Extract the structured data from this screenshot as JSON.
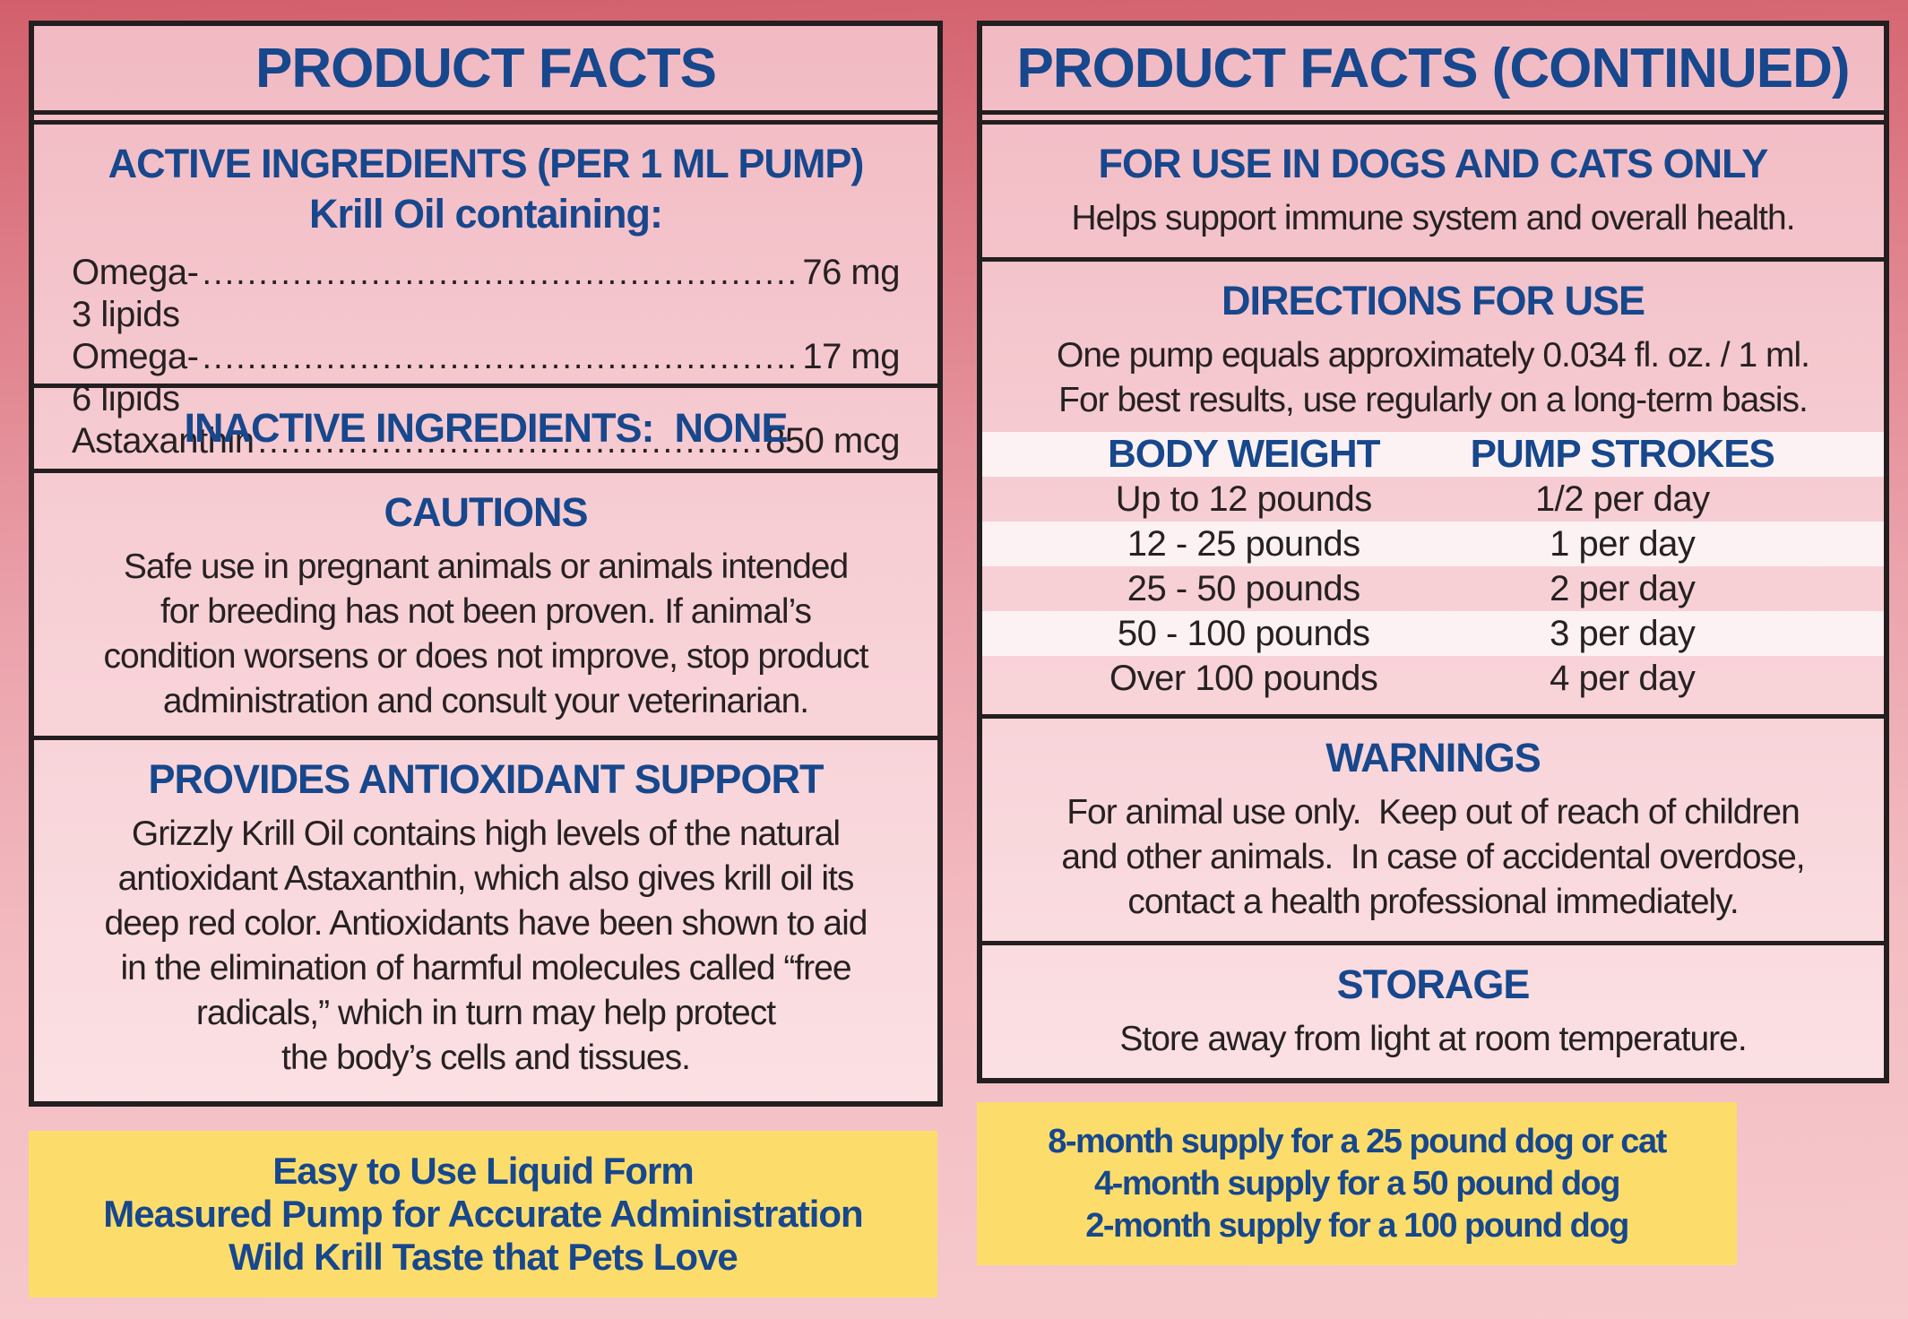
{
  "left_panel": {
    "title": "PRODUCT FACTS",
    "active": {
      "heading": "ACTIVE INGREDIENTS (PER 1 ML PUMP)\nKrill Oil containing:",
      "ingredients": [
        {
          "name": "Omega-3 lipids",
          "value": "76 mg"
        },
        {
          "name": "Omega-6 lipids",
          "value": "17 mg"
        },
        {
          "name": "Astaxanthin",
          "value": "850 mcg"
        }
      ]
    },
    "inactive": {
      "heading": "INACTIVE INGREDIENTS:  NONE"
    },
    "cautions": {
      "heading": "CAUTIONS",
      "body": "Safe use in pregnant animals or animals intended\nfor breeding has not been proven. If animal’s\ncondition worsens or does not improve, stop product\nadministration and consult your veterinarian."
    },
    "antioxidant": {
      "heading": "PROVIDES ANTIOXIDANT SUPPORT",
      "body": "Grizzly Krill Oil contains high levels of the natural\nantioxidant Astaxanthin, which also gives krill oil its\ndeep red color. Antioxidants have been shown to aid\nin the elimination of harmful molecules called “free\nradicals,” which in turn may help protect\nthe body’s cells and tissues."
    },
    "highlight_box": "Easy to Use Liquid Form\nMeasured Pump for Accurate Administration\nWild Krill Taste that Pets Love"
  },
  "right_panel": {
    "title": "PRODUCT FACTS (CONTINUED)",
    "use": {
      "heading": "FOR USE IN DOGS AND CATS ONLY",
      "body": "Helps support immune system and overall health."
    },
    "directions": {
      "heading": "DIRECTIONS FOR USE",
      "body": "One pump equals approximately 0.034 fl. oz. / 1 ml.\nFor best results, use regularly on a long-term basis.",
      "table": {
        "columns": [
          "BODY WEIGHT",
          "PUMP STROKES"
        ],
        "rows": [
          {
            "weight": "Up to 12 pounds",
            "strokes": "1/2 per day"
          },
          {
            "weight": "12 - 25 pounds",
            "strokes": "1 per day"
          },
          {
            "weight": "25 - 50 pounds",
            "strokes": "2 per day"
          },
          {
            "weight": "50 - 100 pounds",
            "strokes": "3 per day"
          },
          {
            "weight": "Over 100 pounds",
            "strokes": "4 per day"
          }
        ]
      }
    },
    "warnings": {
      "heading": "WARNINGS",
      "body": "For animal use only.  Keep out of reach of children\nand other animals.  In case of accidental overdose,\ncontact a health professional immediately."
    },
    "storage": {
      "heading": "STORAGE",
      "body": "Store away from light at room temperature."
    },
    "highlight_box": "8-month supply for a 25 pound dog or cat\n4-month supply for a 50 pound dog\n2-month supply for a 100 pound dog"
  },
  "colors": {
    "heading_blue": "#17478c",
    "text_black": "#262123",
    "border_black": "#231f20",
    "highlight_yellow": "#fcdd6c",
    "table_stripe_white": "#fdf2f3",
    "panel_pink_top": "#f2bac3",
    "panel_pink_bottom": "#fbe0e3",
    "background_top": "#d2606c",
    "background_bottom": "#f6c9cd"
  }
}
